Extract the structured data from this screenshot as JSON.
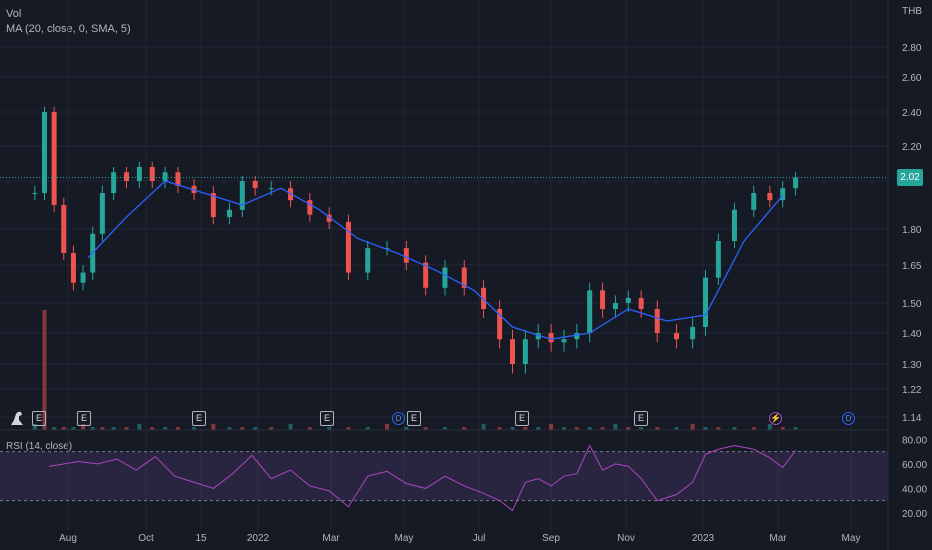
{
  "legend": {
    "vol_label": "Vol",
    "ma_label": "MA (20, close, 0, SMA, 5)",
    "rsi_label": "RSI (14, close)"
  },
  "currency": "THB",
  "last_price_tag": "2.02",
  "events": {
    "earnings_label": "E",
    "dividend_label": "D",
    "split_symbol": "⚡",
    "logo_icon": "dino-logo-icon"
  },
  "colors": {
    "background": "#161a25",
    "grid": "#232733",
    "up": "#26a69a",
    "down": "#ef5350",
    "ma": "#2962ff",
    "rsi": "#ab47bc",
    "rsi_band": "#7e57c2",
    "text": "#b2b5be"
  },
  "chart_data": [
    {
      "type": "candlestick",
      "title": "",
      "y_axis_ticks": [
        "2.80",
        "2.60",
        "2.40",
        "2.20",
        "2.00",
        "1.80",
        "1.65",
        "1.50",
        "1.40",
        "1.30",
        "1.22",
        "1.14"
      ],
      "x_axis_ticks": [
        "Aug",
        "Oct",
        "15",
        "2022",
        "Mar",
        "May",
        "Jul",
        "Sep",
        "Nov",
        "2023",
        "Mar",
        "May"
      ],
      "ylim": [
        1.14,
        2.8
      ],
      "last_price": 2.02,
      "close_series": [
        {
          "x": "Jul 2021",
          "y": 1.95
        },
        {
          "x": "Jul 2021",
          "y": 2.4
        },
        {
          "x": "Jul 2021",
          "y": 1.9
        },
        {
          "x": "Jul 2021",
          "y": 1.7
        },
        {
          "x": "Aug 2021",
          "y": 1.58
        },
        {
          "x": "Aug 2021",
          "y": 1.62
        },
        {
          "x": "Aug 2021",
          "y": 1.78
        },
        {
          "x": "Aug 2021",
          "y": 1.95
        },
        {
          "x": "Sep 2021",
          "y": 2.05
        },
        {
          "x": "Sep 2021",
          "y": 2.0
        },
        {
          "x": "Sep 2021",
          "y": 2.08
        },
        {
          "x": "Oct 2021",
          "y": 2.0
        },
        {
          "x": "Oct 2021",
          "y": 2.05
        },
        {
          "x": "Oct 2021",
          "y": 1.98
        },
        {
          "x": "Nov 2021",
          "y": 1.95
        },
        {
          "x": "Nov 2021",
          "y": 1.85
        },
        {
          "x": "Dec 2021",
          "y": 1.88
        },
        {
          "x": "Dec 2021",
          "y": 2.0
        },
        {
          "x": "Dec 2021",
          "y": 1.97
        },
        {
          "x": "Jan 2022",
          "y": 1.97
        },
        {
          "x": "Jan 2022",
          "y": 1.92
        },
        {
          "x": "Feb 2022",
          "y": 1.86
        },
        {
          "x": "Feb 2022",
          "y": 1.83
        },
        {
          "x": "Mar 2022",
          "y": 1.62
        },
        {
          "x": "Mar 2022",
          "y": 1.72
        },
        {
          "x": "Apr 2022",
          "y": 1.72
        },
        {
          "x": "Apr 2022",
          "y": 1.66
        },
        {
          "x": "May 2022",
          "y": 1.56
        },
        {
          "x": "May 2022",
          "y": 1.64
        },
        {
          "x": "Jun 2022",
          "y": 1.56
        },
        {
          "x": "Jun 2022",
          "y": 1.48
        },
        {
          "x": "Jul 2022",
          "y": 1.38
        },
        {
          "x": "Jul 2022",
          "y": 1.3
        },
        {
          "x": "Jul 2022",
          "y": 1.38
        },
        {
          "x": "Aug 2022",
          "y": 1.4
        },
        {
          "x": "Aug 2022",
          "y": 1.37
        },
        {
          "x": "Aug 2022",
          "y": 1.38
        },
        {
          "x": "Sep 2022",
          "y": 1.4
        },
        {
          "x": "Sep 2022",
          "y": 1.55
        },
        {
          "x": "Sep 2022",
          "y": 1.48
        },
        {
          "x": "Oct 2022",
          "y": 1.5
        },
        {
          "x": "Oct 2022",
          "y": 1.52
        },
        {
          "x": "Oct 2022",
          "y": 1.48
        },
        {
          "x": "Nov 2022",
          "y": 1.4
        },
        {
          "x": "Nov 2022",
          "y": 1.38
        },
        {
          "x": "Dec 2022",
          "y": 1.42
        },
        {
          "x": "Dec 2022",
          "y": 1.6
        },
        {
          "x": "Dec 2022",
          "y": 1.75
        },
        {
          "x": "Jan 2023",
          "y": 1.88
        },
        {
          "x": "Jan 2023",
          "y": 1.95
        },
        {
          "x": "Feb 2023",
          "y": 1.92
        },
        {
          "x": "Feb 2023",
          "y": 1.97
        },
        {
          "x": "Feb 2023",
          "y": 2.02
        }
      ],
      "ma_series": [
        {
          "x": "Aug 2021",
          "y": 1.68
        },
        {
          "x": "Sep 2021",
          "y": 1.85
        },
        {
          "x": "Oct 2021",
          "y": 2.0
        },
        {
          "x": "Nov 2021",
          "y": 1.95
        },
        {
          "x": "Dec 2021",
          "y": 1.9
        },
        {
          "x": "Jan 2022",
          "y": 1.97
        },
        {
          "x": "Feb 2022",
          "y": 1.88
        },
        {
          "x": "Mar 2022",
          "y": 1.76
        },
        {
          "x": "Apr 2022",
          "y": 1.7
        },
        {
          "x": "May 2022",
          "y": 1.63
        },
        {
          "x": "Jun 2022",
          "y": 1.55
        },
        {
          "x": "Jul 2022",
          "y": 1.42
        },
        {
          "x": "Aug 2022",
          "y": 1.38
        },
        {
          "x": "Sep 2022",
          "y": 1.4
        },
        {
          "x": "Oct 2022",
          "y": 1.48
        },
        {
          "x": "Nov 2022",
          "y": 1.44
        },
        {
          "x": "Dec 2022",
          "y": 1.46
        },
        {
          "x": "Jan 2023",
          "y": 1.75
        },
        {
          "x": "Feb 2023",
          "y": 1.94
        }
      ]
    },
    {
      "type": "line",
      "title": "",
      "y_axis_ticks": [
        "80.00",
        "60.00",
        "40.00",
        "20.00"
      ],
      "ylim": [
        15,
        82
      ],
      "band": [
        30,
        70
      ],
      "series": [
        {
          "x": "Jul 2021",
          "y": 58
        },
        {
          "x": "Aug 2021",
          "y": 62
        },
        {
          "x": "Aug 2021",
          "y": 60
        },
        {
          "x": "Sep 2021",
          "y": 64
        },
        {
          "x": "Sep 2021",
          "y": 55
        },
        {
          "x": "Oct 2021",
          "y": 66
        },
        {
          "x": "Oct 2021",
          "y": 50
        },
        {
          "x": "Nov 2021",
          "y": 45
        },
        {
          "x": "Nov 2021",
          "y": 40
        },
        {
          "x": "Dec 2021",
          "y": 52
        },
        {
          "x": "Dec 2021",
          "y": 67
        },
        {
          "x": "Jan 2022",
          "y": 48
        },
        {
          "x": "Jan 2022",
          "y": 55
        },
        {
          "x": "Feb 2022",
          "y": 42
        },
        {
          "x": "Feb 2022",
          "y": 38
        },
        {
          "x": "Mar 2022",
          "y": 25
        },
        {
          "x": "Mar 2022",
          "y": 50
        },
        {
          "x": "Apr 2022",
          "y": 54
        },
        {
          "x": "Apr 2022",
          "y": 44
        },
        {
          "x": "May 2022",
          "y": 40
        },
        {
          "x": "May 2022",
          "y": 50
        },
        {
          "x": "Jun 2022",
          "y": 42
        },
        {
          "x": "Jun 2022",
          "y": 36
        },
        {
          "x": "Jul 2022",
          "y": 30
        },
        {
          "x": "Jul 2022",
          "y": 22
        },
        {
          "x": "Jul 2022",
          "y": 45
        },
        {
          "x": "Aug 2022",
          "y": 48
        },
        {
          "x": "Aug 2022",
          "y": 42
        },
        {
          "x": "Aug 2022",
          "y": 50
        },
        {
          "x": "Sep 2022",
          "y": 52
        },
        {
          "x": "Sep 2022",
          "y": 75
        },
        {
          "x": "Sep 2022",
          "y": 55
        },
        {
          "x": "Oct 2022",
          "y": 60
        },
        {
          "x": "Oct 2022",
          "y": 58
        },
        {
          "x": "Oct 2022",
          "y": 48
        },
        {
          "x": "Nov 2022",
          "y": 30
        },
        {
          "x": "Nov 2022",
          "y": 35
        },
        {
          "x": "Dec 2022",
          "y": 45
        },
        {
          "x": "Dec 2022",
          "y": 68
        },
        {
          "x": "Dec 2022",
          "y": 72
        },
        {
          "x": "Jan 2023",
          "y": 75
        },
        {
          "x": "Jan 2023",
          "y": 72
        },
        {
          "x": "Feb 2023",
          "y": 65
        },
        {
          "x": "Feb 2023",
          "y": 57
        },
        {
          "x": "Feb 2023",
          "y": 71
        }
      ]
    }
  ]
}
